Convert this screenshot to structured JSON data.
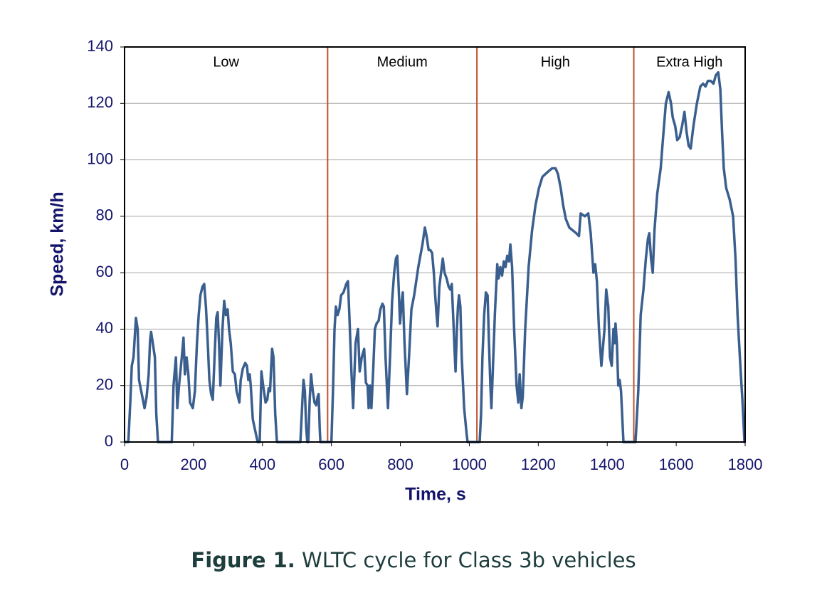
{
  "chart_data": {
    "type": "line",
    "xlabel": "Time, s",
    "ylabel": "Speed, km/h",
    "caption_label": "Figure 1.",
    "caption": "WLTC cycle for Class 3b vehicles",
    "phases": [
      "Low",
      "Medium",
      "High",
      "Extra High"
    ],
    "dividers": [
      589,
      1022,
      1477
    ],
    "divider_color": "#c0522d",
    "xlim": [
      0,
      1800
    ],
    "ylim": [
      0,
      140
    ],
    "xticks": [
      0,
      200,
      400,
      600,
      800,
      1000,
      1200,
      1400,
      1600,
      1800
    ],
    "yticks": [
      0,
      20,
      40,
      60,
      80,
      100,
      120,
      140
    ],
    "grid": true,
    "x": [
      0,
      11,
      17,
      21,
      26,
      30,
      33,
      38,
      42,
      50,
      58,
      64,
      70,
      74,
      77,
      82,
      88,
      92,
      97,
      137,
      142,
      149,
      153,
      158,
      166,
      171,
      175,
      180,
      185,
      190,
      198,
      204,
      210,
      215,
      220,
      226,
      231,
      236,
      241,
      246,
      251,
      256,
      261,
      266,
      270,
      274,
      278,
      284,
      289,
      294,
      299,
      303,
      308,
      314,
      320,
      325,
      333,
      337,
      343,
      350,
      355,
      359,
      363,
      366,
      372,
      386,
      392,
      397,
      402,
      409,
      414,
      418,
      422,
      425,
      428,
      432,
      437,
      442,
      510,
      516,
      519,
      523,
      527,
      530,
      533,
      537,
      541,
      546,
      551,
      556,
      560,
      563,
      566,
      568,
      600,
      605,
      609,
      613,
      618,
      623,
      628,
      635,
      643,
      648,
      652,
      658,
      663,
      670,
      677,
      682,
      688,
      695,
      700,
      705,
      708,
      712,
      716,
      721,
      726,
      731,
      737,
      742,
      748,
      752,
      757,
      764,
      770,
      776,
      782,
      787,
      791,
      795,
      799,
      804,
      807,
      812,
      819,
      825,
      832,
      840,
      846,
      852,
      858,
      864,
      871,
      876,
      882,
      887,
      892,
      897,
      901,
      905,
      908,
      913,
      918,
      923,
      928,
      934,
      940,
      945,
      949,
      953,
      957,
      960,
      964,
      967,
      970,
      974,
      978,
      985,
      992,
      995,
      1030,
      1034,
      1038,
      1043,
      1048,
      1053,
      1057,
      1061,
      1064,
      1068,
      1074,
      1081,
      1085,
      1090,
      1095,
      1100,
      1105,
      1110,
      1115,
      1119,
      1124,
      1130,
      1137,
      1142,
      1146,
      1151,
      1155,
      1162,
      1172,
      1182,
      1192,
      1202,
      1212,
      1230,
      1240,
      1250,
      1257,
      1265,
      1272,
      1280,
      1290,
      1300,
      1310,
      1318,
      1323,
      1335,
      1345,
      1352,
      1360,
      1365,
      1370,
      1376,
      1383,
      1392,
      1397,
      1403,
      1408,
      1413,
      1418,
      1421,
      1424,
      1428,
      1432,
      1436,
      1440,
      1447,
      1482,
      1490,
      1497,
      1505,
      1512,
      1518,
      1522,
      1527,
      1532,
      1537,
      1545,
      1555,
      1562,
      1570,
      1578,
      1585,
      1590,
      1597,
      1603,
      1610,
      1617,
      1624,
      1630,
      1636,
      1642,
      1650,
      1660,
      1670,
      1678,
      1685,
      1692,
      1700,
      1708,
      1715,
      1722,
      1728,
      1733,
      1738,
      1745,
      1755,
      1765,
      1772,
      1778,
      1787,
      1792,
      1798,
      1800
    ],
    "series": [
      {
        "color": "#3a5f8e",
        "values": [
          0,
          0,
          15,
          27,
          30,
          38,
          44,
          40,
          22,
          17,
          12,
          16,
          24,
          36,
          39,
          35,
          30,
          10,
          0,
          0,
          20,
          30,
          12,
          20,
          30,
          37,
          24,
          30,
          24,
          14,
          12,
          18,
          35,
          45,
          52,
          55,
          56,
          48,
          36,
          22,
          17,
          15,
          30,
          44,
          46,
          35,
          20,
          40,
          50,
          45,
          47,
          40,
          35,
          25,
          24,
          18,
          14,
          22,
          26,
          28,
          27,
          22,
          24,
          20,
          8,
          0,
          0,
          25,
          20,
          14,
          15,
          19,
          18,
          26,
          33,
          30,
          10,
          0,
          0,
          15,
          22,
          18,
          5,
          0,
          0,
          15,
          24,
          18,
          14,
          13,
          16,
          17,
          5,
          0,
          0,
          20,
          40,
          48,
          45,
          47,
          52,
          53,
          56,
          57,
          45,
          25,
          12,
          35,
          40,
          25,
          30,
          33,
          21,
          20,
          12,
          20,
          12,
          25,
          40,
          42,
          43,
          47,
          49,
          48,
          30,
          12,
          30,
          50,
          60,
          65,
          66,
          55,
          42,
          50,
          53,
          35,
          17,
          30,
          47,
          52,
          57,
          62,
          66,
          70,
          76,
          73,
          68,
          68,
          67,
          60,
          52,
          45,
          41,
          55,
          60,
          65,
          60,
          58,
          55,
          54,
          56,
          45,
          33,
          25,
          40,
          48,
          52,
          48,
          30,
          12,
          3,
          0,
          0,
          10,
          30,
          45,
          53,
          52,
          35,
          20,
          12,
          25,
          45,
          63,
          58,
          62,
          59,
          64,
          62,
          66,
          64,
          70,
          62,
          40,
          20,
          14,
          24,
          12,
          16,
          40,
          62,
          75,
          84,
          90,
          94,
          96,
          97,
          97,
          95,
          90,
          84,
          79,
          76,
          75,
          74,
          73,
          81,
          80,
          81,
          74,
          60,
          63,
          57,
          40,
          27,
          40,
          54,
          48,
          30,
          27,
          40,
          35,
          42,
          35,
          20,
          22,
          18,
          0,
          0,
          18,
          45,
          54,
          65,
          72,
          74,
          65,
          60,
          75,
          88,
          97,
          108,
          120,
          124,
          120,
          115,
          112,
          107,
          108,
          112,
          117,
          110,
          105,
          104,
          112,
          120,
          126,
          127,
          126,
          128,
          128,
          127,
          130,
          131,
          125,
          110,
          97,
          90,
          86,
          80,
          65,
          45,
          25,
          15,
          0,
          0
        ]
      }
    ]
  }
}
